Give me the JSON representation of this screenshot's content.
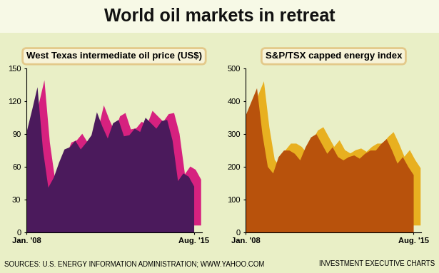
{
  "title": "World oil markets in retreat",
  "sources": "SOURCES: U.S. ENERGY INFORMATION ADMINISTRATION; WWW.YAHOO.COM",
  "credit": "INVESTMENT EXECUTIVE CHARTS",
  "chart_data": [
    {
      "type": "area",
      "title": "West Texas intermediate oil price (US$)",
      "categories": [
        "Jan. '08",
        null,
        null,
        null,
        null,
        null,
        null,
        null,
        null,
        null,
        null,
        null,
        null,
        null,
        null,
        null,
        null,
        null,
        null,
        null,
        null,
        null,
        null,
        null,
        null,
        null,
        null,
        null,
        null,
        null,
        null,
        "Aug. '15"
      ],
      "values": [
        92,
        112,
        133,
        76,
        41,
        50,
        64,
        76,
        78,
        84,
        76,
        82,
        89,
        110,
        97,
        86,
        100,
        103,
        88,
        89,
        95,
        92,
        105,
        100,
        95,
        102,
        103,
        84,
        47,
        54,
        51,
        42
      ],
      "color": "#4b1a5c",
      "ylim": [
        0,
        150
      ],
      "yticks": [
        0,
        30,
        60,
        90,
        120,
        150
      ]
    },
    {
      "type": "area",
      "title": "S&P/TSX capped energy index",
      "categories": [
        "Jan. '08",
        null,
        null,
        null,
        null,
        null,
        null,
        null,
        null,
        null,
        null,
        null,
        null,
        null,
        null,
        null,
        null,
        null,
        null,
        null,
        null,
        null,
        null,
        null,
        null,
        null,
        null,
        null,
        null,
        null,
        null,
        "Aug. '15"
      ],
      "values": [
        360,
        400,
        440,
        300,
        200,
        180,
        230,
        250,
        250,
        240,
        220,
        260,
        290,
        300,
        270,
        240,
        260,
        230,
        220,
        230,
        235,
        225,
        240,
        250,
        250,
        270,
        285,
        250,
        210,
        230,
        200,
        175
      ],
      "color": "#b8520c",
      "ylim": [
        0,
        500
      ],
      "yticks": [
        0,
        100,
        200,
        300,
        400,
        500
      ]
    }
  ]
}
